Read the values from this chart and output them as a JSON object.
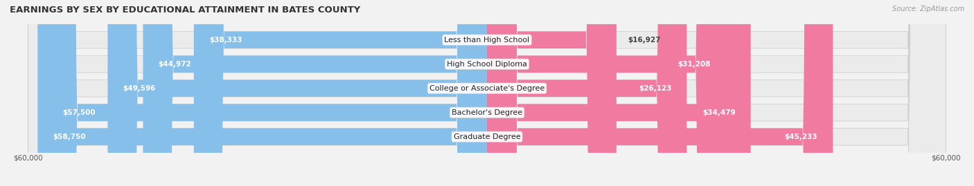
{
  "title": "EARNINGS BY SEX BY EDUCATIONAL ATTAINMENT IN BATES COUNTY",
  "source": "Source: ZipAtlas.com",
  "categories": [
    "Less than High School",
    "High School Diploma",
    "College or Associate's Degree",
    "Bachelor's Degree",
    "Graduate Degree"
  ],
  "male_values": [
    38333,
    44972,
    49596,
    57500,
    58750
  ],
  "female_values": [
    16927,
    31208,
    26123,
    34479,
    45233
  ],
  "male_color": "#85BFEA",
  "female_color": "#F07AA0",
  "max_value": 60000,
  "bg_color": "#F2F2F2",
  "bar_bg_color": "#DCDCDC",
  "row_bg_color": "#EBEBEB",
  "title_fontsize": 9.5,
  "label_fontsize": 8.0,
  "value_fontsize": 7.5,
  "source_fontsize": 7.0,
  "bar_height": 0.7
}
